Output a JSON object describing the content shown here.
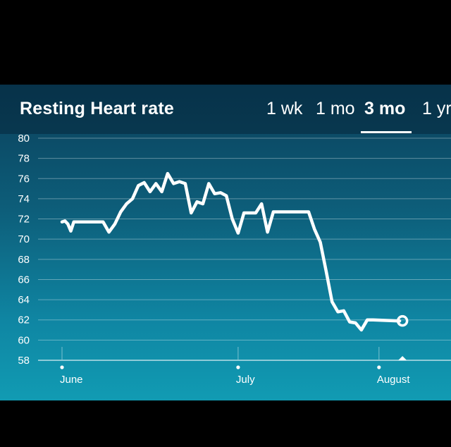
{
  "header": {
    "title": "Resting Heart rate",
    "ranges": [
      {
        "label": "1 wk",
        "active": false
      },
      {
        "label": "1 mo",
        "active": false
      },
      {
        "label": "3 mo",
        "active": true
      },
      {
        "label": "1 yr",
        "active": false
      }
    ]
  },
  "colors": {
    "line": "#ffffff",
    "grid": "#ffffff"
  },
  "chart_data": {
    "type": "line",
    "title": "",
    "xlabel": "",
    "ylabel": "",
    "ylim": [
      58,
      80
    ],
    "yticks": [
      58,
      60,
      62,
      64,
      66,
      68,
      70,
      72,
      74,
      76,
      78,
      80
    ],
    "xlim": [
      0,
      70
    ],
    "xticks": [
      {
        "label": "June",
        "x": 0
      },
      {
        "label": "July",
        "x": 30
      },
      {
        "label": "August",
        "x": 54
      }
    ],
    "grid": true,
    "series": [
      {
        "x": [
          0,
          0.5,
          1,
          1.5,
          2,
          3,
          5,
          7,
          8,
          9,
          10,
          11,
          12,
          13,
          14,
          15,
          16,
          17,
          18,
          19,
          20,
          21,
          22,
          23,
          24,
          25,
          26,
          27,
          28,
          29,
          30,
          31,
          32,
          33,
          34,
          35,
          36,
          37,
          38,
          39,
          40,
          41,
          42,
          43,
          44,
          45,
          46,
          47,
          48,
          49,
          50,
          51,
          52,
          53,
          54,
          55,
          56,
          57,
          58
        ],
        "y": [
          71.7,
          71.8,
          71.5,
          70.8,
          71.7,
          71.7,
          71.7,
          71.7,
          70.7,
          71.5,
          72.7,
          73.5,
          74.0,
          75.3,
          75.6,
          74.7,
          75.5,
          74.7,
          76.5,
          75.5,
          75.7,
          75.5,
          72.6,
          73.7,
          73.5,
          75.5,
          74.5,
          74.6,
          74.3,
          72.0,
          70.6,
          72.6,
          72.6,
          72.6,
          73.5,
          70.7,
          72.7,
          72.7,
          72.7,
          72.7,
          72.7,
          72.7,
          72.7,
          71.0,
          69.7,
          66.8,
          63.8,
          62.8,
          62.9,
          61.8,
          61.7,
          61.0,
          62.0,
          62.0,
          null,
          null,
          null,
          null,
          null
        ],
        "last_point": {
          "x": 58,
          "y": 61.9
        }
      }
    ]
  }
}
